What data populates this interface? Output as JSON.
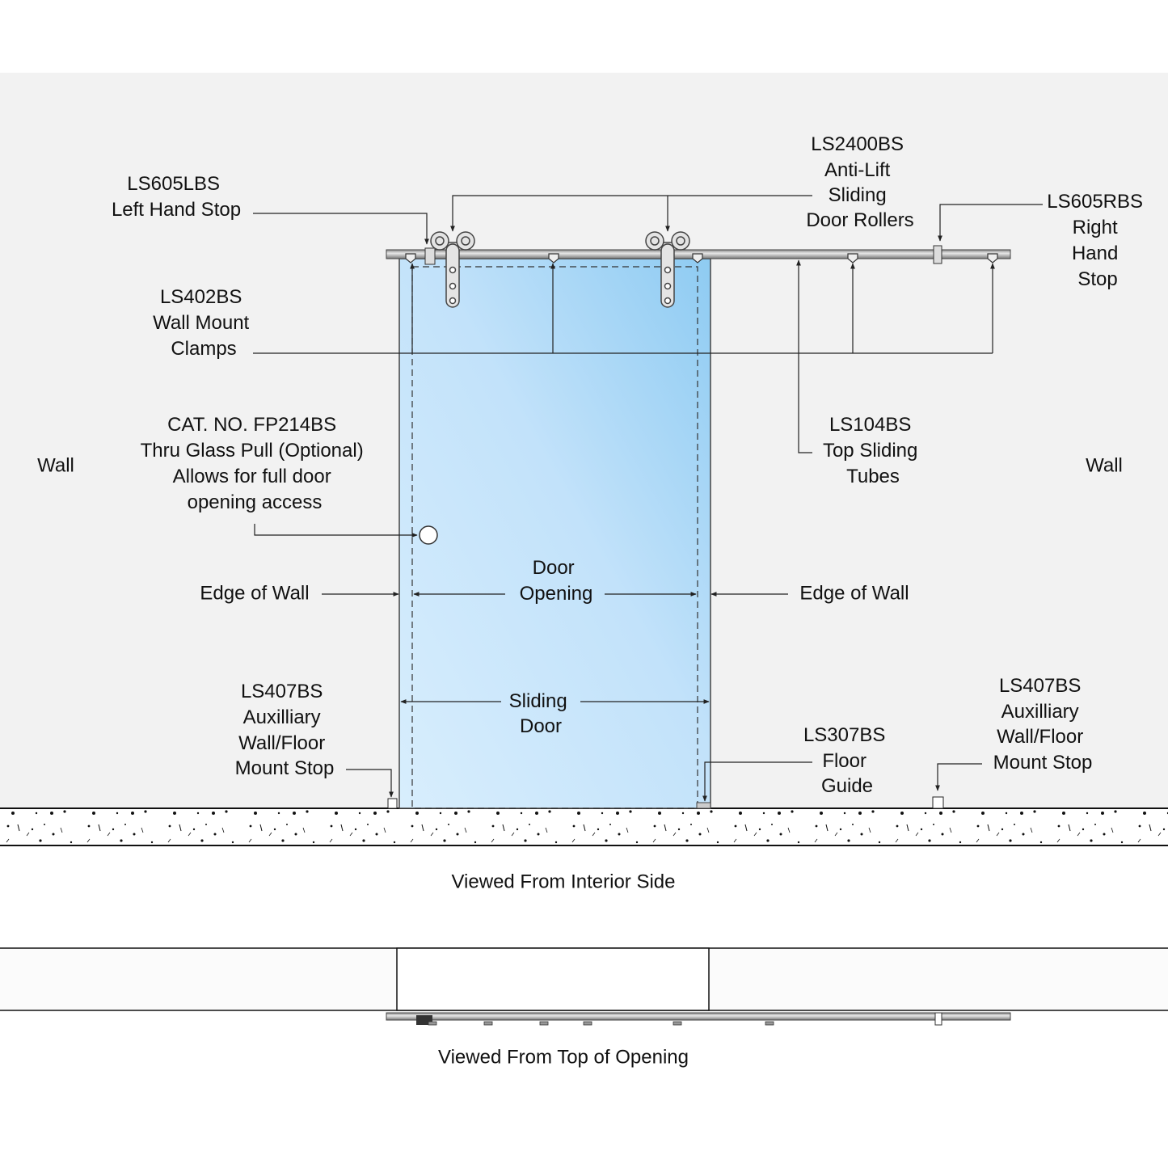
{
  "colors": {
    "wall": "#f2f2f2",
    "glass_light": "#d6ecfc",
    "glass_dark": "#8ecbf2",
    "rail": "#b8b8b8",
    "line": "#222222"
  },
  "labels": {
    "left_stop": {
      "lines": [
        "LS605LBS",
        "Left Hand Stop"
      ]
    },
    "rollers": {
      "lines": [
        "LS2400BS",
        "Anti-Lift",
        "Sliding",
        "Door Rollers"
      ]
    },
    "right_stop": {
      "lines": [
        "LS605RBS",
        "Right",
        "Hand",
        "Stop"
      ]
    },
    "clamps": {
      "lines": [
        "LS402BS",
        "Wall Mount",
        "Clamps"
      ]
    },
    "pull": {
      "lines": [
        "CAT. NO. FP214BS",
        "Thru Glass Pull (Optional)",
        "Allows for full door",
        "opening access"
      ]
    },
    "tubes": {
      "lines": [
        "LS104BS",
        "Top Sliding",
        "Tubes"
      ]
    },
    "wall_left": "Wall",
    "wall_right": "Wall",
    "edge_left": "Edge of Wall",
    "edge_right": "Edge of Wall",
    "door_opening": {
      "lines": [
        "Door",
        "Opening"
      ]
    },
    "sliding_door": {
      "lines": [
        "Sliding",
        "Door"
      ]
    },
    "stop_left": {
      "lines": [
        "LS407BS",
        "Auxilliary",
        "Wall/Floor",
        "Mount Stop"
      ]
    },
    "floor_guide": {
      "lines": [
        "LS307BS",
        "Floor",
        "Guide"
      ]
    },
    "stop_right": {
      "lines": [
        "LS407BS",
        "Auxilliary",
        "Wall/Floor",
        "Mount Stop"
      ]
    }
  },
  "captions": {
    "interior": "Viewed From Interior Side",
    "top": "Viewed From Top of Opening"
  }
}
